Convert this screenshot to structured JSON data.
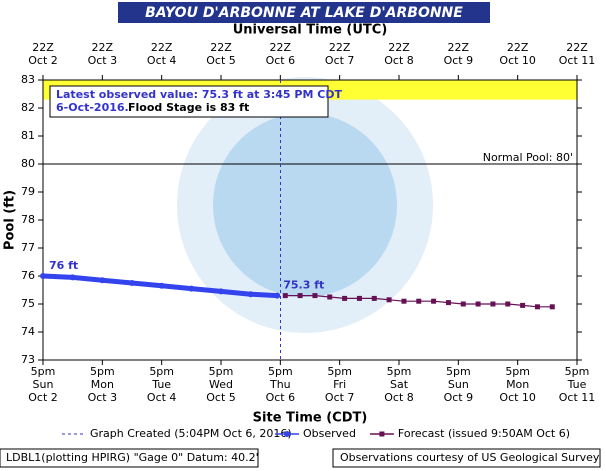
{
  "chart_data": {
    "type": "line",
    "title": "BAYOU D'ARBONNE AT LAKE D'ARBONNE",
    "top_axis_label": "Universal Time (UTC)",
    "x_label": "Site Time (CDT)",
    "y_label": "Pool (ft)",
    "ylim": [
      73,
      83
    ],
    "yticks": [
      73,
      74,
      75,
      76,
      77,
      78,
      79,
      80,
      81,
      82,
      83
    ],
    "xlim": [
      "2016-10-02T17:00",
      "2016-10-11T17:00"
    ],
    "xticks": [
      {
        "value": "2016-10-02T17:00",
        "label": [
          "5pm",
          "Sun",
          "Oct 2"
        ]
      },
      {
        "value": "2016-10-03T17:00",
        "label": [
          "5pm",
          "Mon",
          "Oct 3"
        ]
      },
      {
        "value": "2016-10-04T17:00",
        "label": [
          "5pm",
          "Tue",
          "Oct 4"
        ]
      },
      {
        "value": "2016-10-05T17:00",
        "label": [
          "5pm",
          "Wed",
          "Oct 5"
        ]
      },
      {
        "value": "2016-10-06T17:00",
        "label": [
          "5pm",
          "Thu",
          "Oct 6"
        ]
      },
      {
        "value": "2016-10-07T17:00",
        "label": [
          "5pm",
          "Fri",
          "Oct 7"
        ]
      },
      {
        "value": "2016-10-08T17:00",
        "label": [
          "5pm",
          "Sat",
          "Oct 8"
        ]
      },
      {
        "value": "2016-10-09T17:00",
        "label": [
          "5pm",
          "Sun",
          "Oct 9"
        ]
      },
      {
        "value": "2016-10-10T17:00",
        "label": [
          "5pm",
          "Mon",
          "Oct 10"
        ]
      },
      {
        "value": "2016-10-11T17:00",
        "label": [
          "5pm",
          "Tue",
          "Oct 11"
        ]
      }
    ],
    "x2ticks": [
      {
        "value": "2016-10-02T17:00",
        "label": [
          "22Z",
          "Oct 2"
        ]
      },
      {
        "value": "2016-10-03T17:00",
        "label": [
          "22Z",
          "Oct 3"
        ]
      },
      {
        "value": "2016-10-04T17:00",
        "label": [
          "22Z",
          "Oct 4"
        ]
      },
      {
        "value": "2016-10-05T17:00",
        "label": [
          "22Z",
          "Oct 5"
        ]
      },
      {
        "value": "2016-10-06T17:00",
        "label": [
          "22Z",
          "Oct 6"
        ]
      },
      {
        "value": "2016-10-07T17:00",
        "label": [
          "22Z",
          "Oct 7"
        ]
      },
      {
        "value": "2016-10-08T17:00",
        "label": [
          "22Z",
          "Oct 8"
        ]
      },
      {
        "value": "2016-10-09T17:00",
        "label": [
          "22Z",
          "Oct 9"
        ]
      },
      {
        "value": "2016-10-10T17:00",
        "label": [
          "22Z",
          "Oct 10"
        ]
      },
      {
        "value": "2016-10-11T17:00",
        "label": [
          "22Z",
          "Oct 11"
        ]
      }
    ],
    "bands": [
      {
        "from": 82.3,
        "to": 83,
        "color": "#ffff33"
      }
    ],
    "reference_lines": [
      {
        "value": 80,
        "label": "Normal Pool: 80'"
      }
    ],
    "created_line": {
      "x": "2016-10-06T17:04",
      "label": "Graph Created (5:04PM Oct 6, 2016)",
      "color": "#3333cc"
    },
    "series": [
      {
        "name": "Observed",
        "color": "#3344ee",
        "marker": "circle",
        "x": [
          "2016-10-02T17:00",
          "2016-10-03T05:00",
          "2016-10-03T17:00",
          "2016-10-04T05:00",
          "2016-10-04T17:00",
          "2016-10-05T05:00",
          "2016-10-05T17:00",
          "2016-10-06T05:00",
          "2016-10-06T15:45"
        ],
        "values": [
          76.0,
          75.95,
          75.85,
          75.75,
          75.65,
          75.55,
          75.45,
          75.35,
          75.3
        ]
      },
      {
        "name": "Forecast (issued 9:50AM Oct 6)",
        "color": "#661155",
        "marker": "square",
        "x": [
          "2016-10-06T19:00",
          "2016-10-07T01:00",
          "2016-10-07T07:00",
          "2016-10-07T13:00",
          "2016-10-07T19:00",
          "2016-10-08T01:00",
          "2016-10-08T07:00",
          "2016-10-08T13:00",
          "2016-10-08T19:00",
          "2016-10-09T01:00",
          "2016-10-09T07:00",
          "2016-10-09T13:00",
          "2016-10-09T19:00",
          "2016-10-10T01:00",
          "2016-10-10T07:00",
          "2016-10-10T13:00",
          "2016-10-10T19:00",
          "2016-10-11T01:00",
          "2016-10-11T07:00"
        ],
        "values": [
          75.3,
          75.3,
          75.3,
          75.25,
          75.2,
          75.2,
          75.2,
          75.15,
          75.1,
          75.1,
          75.1,
          75.05,
          75.0,
          75.0,
          75.0,
          75.0,
          74.95,
          74.9,
          74.9
        ]
      }
    ],
    "annotations": [
      {
        "text": "76 ft",
        "x": "2016-10-02T17:00",
        "y": 76.0
      },
      {
        "text": "75.3 ft",
        "x": "2016-10-06T15:45",
        "y": 75.3
      }
    ],
    "latest_box": {
      "line1": "Latest observed value: 75.3 ft at 3:45 PM CDT",
      "line2_date": "6-Oct-2016.",
      "line2_rest": "Flood Stage is 83 ft"
    },
    "footer_left": "LDBL1(plotting HPIRG) \"Gage 0\" Datum: 40.2'",
    "footer_right": "Observations courtesy of US Geological Survey"
  }
}
